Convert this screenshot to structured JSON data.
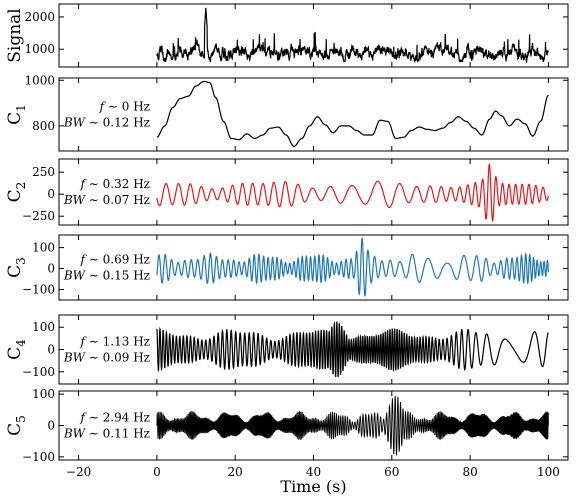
{
  "chart_data": {
    "type": "line",
    "xlabel": "Time (s)",
    "xlim": [
      -25,
      105
    ],
    "xticks": [
      -20,
      0,
      20,
      40,
      60,
      80,
      100
    ],
    "x_start": 0,
    "x_end": 100,
    "panels": [
      {
        "id": "signal",
        "ylabel": "Signal",
        "ylabel_sub": "",
        "ylim": [
          450,
          2400
        ],
        "yticks": [
          1000,
          2000
        ],
        "color": "#000000",
        "annotation": null,
        "trace": {
          "kind": "noise",
          "baseline": 900,
          "spread": 240,
          "spike_max": 2280,
          "spike_at": 12.5,
          "smooth": 0.85
        }
      },
      {
        "id": "c1",
        "ylabel": "C",
        "ylabel_sub": "1",
        "ylim": [
          690,
          1010
        ],
        "yticks": [
          800,
          1000
        ],
        "color": "#000000",
        "annotation": {
          "f_label": "f",
          "f_text": " ∼ 0 Hz",
          "bw_label": "BW",
          "bw_text": " ∼ 0.12 Hz"
        },
        "trace": {
          "kind": "keypoints",
          "points": [
            [
              0,
              750
            ],
            [
              2,
              800
            ],
            [
              4,
              880
            ],
            [
              6,
              920
            ],
            [
              8,
              930
            ],
            [
              10,
              975
            ],
            [
              12,
              995
            ],
            [
              13.5,
              990
            ],
            [
              15,
              925
            ],
            [
              17,
              820
            ],
            [
              19,
              745
            ],
            [
              21,
              740
            ],
            [
              23,
              765
            ],
            [
              25,
              745
            ],
            [
              27,
              760
            ],
            [
              29,
              790
            ],
            [
              31,
              795
            ],
            [
              33,
              760
            ],
            [
              35,
              710
            ],
            [
              37,
              745
            ],
            [
              39,
              800
            ],
            [
              41,
              840
            ],
            [
              43,
              805
            ],
            [
              45,
              770
            ],
            [
              47,
              800
            ],
            [
              49,
              800
            ],
            [
              51,
              780
            ],
            [
              53,
              760
            ],
            [
              55,
              760
            ],
            [
              57,
              825
            ],
            [
              59,
              820
            ],
            [
              61,
              745
            ],
            [
              63,
              750
            ],
            [
              65,
              780
            ],
            [
              67,
              795
            ],
            [
              69,
              785
            ],
            [
              71,
              780
            ],
            [
              73,
              790
            ],
            [
              75,
              815
            ],
            [
              77,
              840
            ],
            [
              79,
              820
            ],
            [
              81,
              790
            ],
            [
              83,
              760
            ],
            [
              85,
              830
            ],
            [
              86.5,
              865
            ],
            [
              88,
              845
            ],
            [
              90,
              800
            ],
            [
              92,
              830
            ],
            [
              94,
              810
            ],
            [
              96,
              755
            ],
            [
              98,
              820
            ],
            [
              100,
              935
            ]
          ]
        }
      },
      {
        "id": "c2",
        "ylabel": "C",
        "ylabel_sub": "2",
        "ylim": [
          -350,
          400
        ],
        "yticks": [
          -250,
          0,
          250
        ],
        "color": "#e8171c",
        "annotation": {
          "f_label": "f",
          "f_text": " ∼ 0.32 Hz",
          "bw_label": "BW",
          "bw_text": " ∼ 0.07 Hz"
        },
        "trace": {
          "kind": "osc",
          "freq": 0.32,
          "base_amp": 140,
          "mod_freq": 0.035,
          "mod_depth": 0.45,
          "burst_at": 85,
          "burst_amp": 340,
          "burst_width": 2.2,
          "seed": 3
        }
      },
      {
        "id": "c3",
        "ylabel": "C",
        "ylabel_sub": "3",
        "ylim": [
          -150,
          160
        ],
        "yticks": [
          -100,
          0,
          100
        ],
        "color": "#1f77b4",
        "annotation": {
          "f_label": "f",
          "f_text": " ∼ 0.69 Hz",
          "bw_label": "BW",
          "bw_text": " ∼ 0.15 Hz"
        },
        "trace": {
          "kind": "osc",
          "freq": 0.69,
          "base_amp": 65,
          "mod_freq": 0.075,
          "mod_depth": 0.5,
          "burst_at": 52.5,
          "burst_amp": 145,
          "burst_width": 2.0,
          "seed": 7
        }
      },
      {
        "id": "c4",
        "ylabel": "C",
        "ylabel_sub": "4",
        "ylim": [
          -155,
          155
        ],
        "yticks": [
          -100,
          0,
          100
        ],
        "color": "#000000",
        "annotation": {
          "f_label": "f",
          "f_text": " ∼ 1.13 Hz",
          "bw_label": "BW",
          "bw_text": " ∼ 0.09 Hz"
        },
        "trace": {
          "kind": "osc",
          "freq": 1.13,
          "base_amp": 85,
          "mod_freq": 0.05,
          "mod_depth": 0.45,
          "burst_at": 46,
          "burst_amp": 125,
          "burst_width": 3.0,
          "seed": 11
        }
      },
      {
        "id": "c5",
        "ylabel": "C",
        "ylabel_sub": "5",
        "ylim": [
          -110,
          110
        ],
        "yticks": [
          -100,
          0,
          100
        ],
        "color": "#000000",
        "annotation": {
          "f_label": "f",
          "f_text": " ∼ 2.94 Hz",
          "bw_label": "BW",
          "bw_text": " ∼ 0.11 Hz"
        },
        "trace": {
          "kind": "osc",
          "freq": 2.94,
          "base_amp": 40,
          "mod_freq": 0.11,
          "mod_depth": 0.6,
          "burst_at": 61,
          "burst_amp": 95,
          "burst_width": 2.5,
          "seed": 19
        }
      }
    ]
  }
}
